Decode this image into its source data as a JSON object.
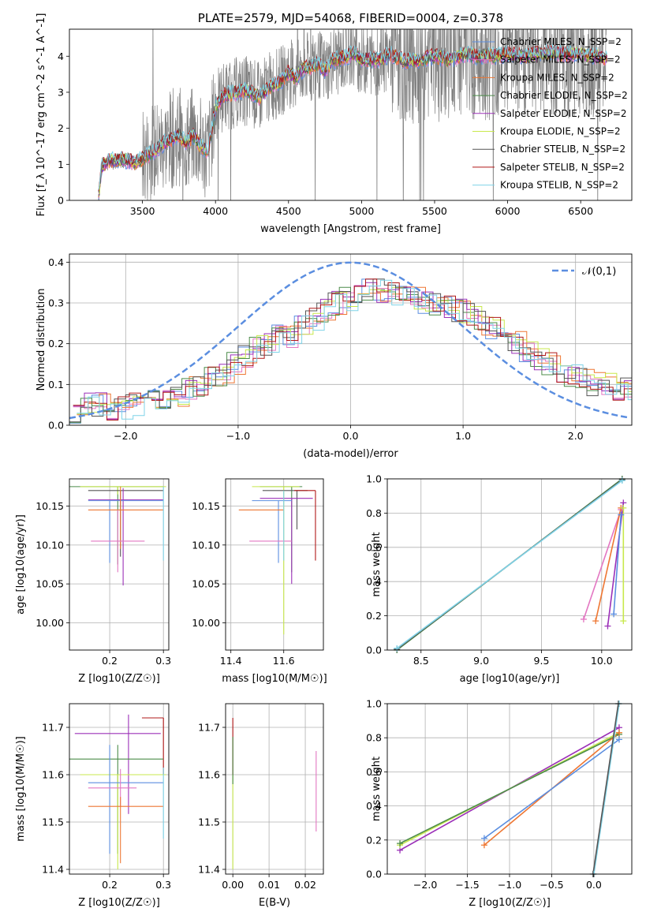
{
  "chart_data": [
    {
      "type": "line",
      "title": "PLATE=2579, MJD=54068, FIBERID=0004, z=0.378",
      "xlabel": "wavelength [Angstrom, rest frame]",
      "ylabel": "Flux [f_λ 10^-17 erg cm^-2 s^-1 A^-1]",
      "xlim": [
        3000,
        6850
      ],
      "ylim": [
        0,
        4.75
      ],
      "xticks": [
        3500,
        4000,
        4500,
        5000,
        5500,
        6000,
        6500
      ],
      "yticks": [
        0,
        1,
        2,
        3,
        4
      ],
      "grid": false,
      "legend_position": "top-right",
      "data_color": "#808080",
      "series": [
        {
          "name": "Chabrier MILES, N_SSP=2",
          "color": "#5b8ee0"
        },
        {
          "name": "Salpeter MILES, N_SSP=2",
          "color": "#e377c2"
        },
        {
          "name": "Kroupa MILES, N_SSP=2",
          "color": "#ee7733"
        },
        {
          "name": "Chabrier ELODIE, N_SSP=2",
          "color": "#4c8c4a"
        },
        {
          "name": "Salpeter ELODIE, N_SSP=2",
          "color": "#9b30b8"
        },
        {
          "name": "Kroupa ELODIE, N_SSP=2",
          "color": "#c8e84c"
        },
        {
          "name": "Chabrier STELIB, N_SSP=2",
          "color": "#555555"
        },
        {
          "name": "Salpeter STELIB, N_SSP=2",
          "color": "#b01818"
        },
        {
          "name": "Kroupa STELIB, N_SSP=2",
          "color": "#7fd3e8"
        }
      ],
      "model_continuum": {
        "x": [
          3200,
          3220,
          3250,
          3300,
          3350,
          3400,
          3450,
          3500,
          3550,
          3600,
          3650,
          3700,
          3750,
          3800,
          3850,
          3900,
          3950,
          4000,
          4050,
          4100,
          4150,
          4200,
          4250,
          4300,
          4350,
          4400,
          4450,
          4500,
          4550,
          4600,
          4650,
          4700,
          4750,
          4800,
          4850,
          4900,
          4950,
          5000,
          5100,
          5200,
          5300,
          5400,
          5500,
          5600,
          5700,
          5800,
          5900,
          6000,
          6100,
          6200,
          6300,
          6400,
          6500,
          6600,
          6680
        ],
        "y": [
          0.05,
          0.95,
          1.05,
          1.1,
          1.15,
          1.1,
          1.05,
          1.15,
          1.3,
          1.4,
          1.6,
          1.7,
          1.8,
          1.6,
          1.8,
          1.5,
          1.35,
          2.6,
          2.9,
          2.95,
          3.0,
          3.05,
          3.0,
          2.85,
          3.1,
          3.2,
          3.3,
          3.55,
          3.4,
          3.65,
          3.7,
          3.8,
          3.6,
          3.9,
          3.9,
          4.0,
          4.1,
          3.9,
          3.9,
          4.05,
          3.85,
          3.9,
          4.0,
          3.9,
          4.05,
          4.0,
          4.0,
          4.05,
          4.0,
          4.05,
          4.1,
          4.05,
          4.05,
          4.0,
          3.95
        ]
      }
    },
    {
      "type": "step",
      "xlabel": "(data-model)/error",
      "ylabel": "Normed distribution",
      "xlim": [
        -2.5,
        2.5
      ],
      "ylim": [
        0,
        0.42
      ],
      "xticks": [
        -2,
        -1,
        0,
        1,
        2
      ],
      "yticks": [
        0.0,
        0.1,
        0.2,
        0.3,
        0.4
      ],
      "grid": true,
      "legend_position": "top-right",
      "gaussian": {
        "name": "𝒩(0,1)",
        "mean": 0,
        "sigma": 1,
        "color": "#5b8ee0"
      },
      "hist_bin_width": 0.1,
      "hist_base": [
        0.02,
        0.05,
        0.05,
        0.04,
        0.04,
        0.05,
        0.05,
        0.06,
        0.07,
        0.07,
        0.09,
        0.1,
        0.12,
        0.12,
        0.15,
        0.17,
        0.19,
        0.2,
        0.22,
        0.22,
        0.25,
        0.26,
        0.28,
        0.3,
        0.31,
        0.32,
        0.33,
        0.33,
        0.32,
        0.32,
        0.31,
        0.3,
        0.3,
        0.29,
        0.28,
        0.27,
        0.25,
        0.24,
        0.22,
        0.2,
        0.18,
        0.16,
        0.15,
        0.13,
        0.12,
        0.11,
        0.1,
        0.1,
        0.09,
        0.09
      ]
    },
    {
      "type": "errorbar",
      "xlabel": "Z [log10(Z/Z☉)]",
      "ylabel": "age [log10(age/yr)]",
      "xlim": [
        0.125,
        0.31
      ],
      "ylim": [
        9.965,
        10.185
      ],
      "xticks": [
        0.2,
        0.3
      ],
      "yticks": [
        10.0,
        10.05,
        10.1,
        10.15
      ],
      "grid": true,
      "points": [
        {
          "x": 0.215,
          "y": 10.175,
          "xerr": [
            0.09,
            0.085
          ],
          "yerr": [
            0.1,
            0.0
          ],
          "color": "#4c8c4a"
        },
        {
          "x": 0.215,
          "y": 10.175,
          "xerr": [
            0.07,
            0.09
          ],
          "yerr": [
            0.01,
            0.0
          ],
          "color": "#c8e84c"
        },
        {
          "x": 0.22,
          "y": 10.17,
          "xerr": [
            0.06,
            0.08
          ],
          "yerr": [
            0.085,
            0.0
          ],
          "color": "#555555"
        },
        {
          "x": 0.225,
          "y": 10.158,
          "xerr": [
            0.065,
            0.075
          ],
          "yerr": [
            0.11,
            0.015
          ],
          "color": "#9b30b8"
        },
        {
          "x": 0.2,
          "y": 10.157,
          "xerr": [
            0.04,
            0.1
          ],
          "yerr": [
            0.08,
            0.0
          ],
          "color": "#5b8ee0"
        },
        {
          "x": 0.22,
          "y": 10.145,
          "xerr": [
            0.06,
            0.08
          ],
          "yerr": [
            0.05,
            0.03
          ],
          "color": "#ee7733"
        },
        {
          "x": 0.215,
          "y": 10.105,
          "xerr": [
            0.05,
            0.05
          ],
          "yerr": [
            0.04,
            0.04
          ],
          "color": "#e377c2"
        },
        {
          "x": 0.3,
          "y": 10.17,
          "xerr": [
            0.0,
            0.0
          ],
          "yerr": [
            0.09,
            0.005
          ],
          "color": "#7fd3e8"
        }
      ]
    },
    {
      "type": "errorbar",
      "xlabel": "mass [log10(M/M☉)]",
      "ylabel": "",
      "xlim": [
        11.38,
        11.75
      ],
      "ylim": [
        9.965,
        10.185
      ],
      "xticks": [
        11.4,
        11.6
      ],
      "yticks": [
        10.0,
        10.05,
        10.1,
        10.15
      ],
      "grid": true,
      "points": [
        {
          "x": 11.63,
          "y": 10.175,
          "xerr": [
            0.12,
            0.04
          ],
          "yerr": [
            0.11,
            0.0
          ],
          "color": "#4c8c4a"
        },
        {
          "x": 11.6,
          "y": 10.175,
          "xerr": [
            0.12,
            0.06
          ],
          "yerr": [
            0.19,
            0.0
          ],
          "color": "#c8e84c"
        },
        {
          "x": 11.65,
          "y": 10.17,
          "xerr": [
            0.13,
            0.04
          ],
          "yerr": [
            0.05,
            0.0
          ],
          "color": "#555555"
        },
        {
          "x": 11.72,
          "y": 10.17,
          "xerr": [
            0.08,
            0.0
          ],
          "yerr": [
            0.09,
            0.0
          ],
          "color": "#b01818"
        },
        {
          "x": 11.63,
          "y": 10.16,
          "xerr": [
            0.12,
            0.08
          ],
          "yerr": [
            0.11,
            0.0
          ],
          "color": "#9b30b8"
        },
        {
          "x": 11.58,
          "y": 10.157,
          "xerr": [
            0.1,
            0.05
          ],
          "yerr": [
            0.08,
            0.0
          ],
          "color": "#5b8ee0"
        },
        {
          "x": 11.53,
          "y": 10.145,
          "xerr": [
            0.1,
            0.07
          ],
          "yerr": [
            0.0,
            0.0
          ],
          "color": "#ee7733"
        },
        {
          "x": 11.57,
          "y": 10.105,
          "xerr": [
            0.1,
            0.06
          ],
          "yerr": [
            0.0,
            0.0
          ],
          "color": "#e377c2"
        },
        {
          "x": 11.6,
          "y": 10.15,
          "xerr": [
            0.0,
            0.0
          ],
          "yerr": [
            0.07,
            0.02
          ],
          "color": "#7fd3e8"
        }
      ]
    },
    {
      "type": "line",
      "xlabel": "age [log10(age/yr)]",
      "ylabel": "mass weight",
      "xlim": [
        8.22,
        10.25
      ],
      "ylim": [
        0,
        1
      ],
      "xticks": [
        8.5,
        9.0,
        9.5,
        10.0
      ],
      "yticks": [
        0.0,
        0.2,
        0.4,
        0.6,
        0.8,
        1.0
      ],
      "grid": true,
      "series": [
        {
          "color": "#4c8c4a",
          "x": [
            8.3,
            10.17
          ],
          "y": [
            0.0,
            1.0
          ]
        },
        {
          "color": "#555555",
          "x": [
            8.3,
            10.17
          ],
          "y": [
            0.005,
            0.995
          ]
        },
        {
          "color": "#7fd3e8",
          "x": [
            8.3,
            10.17
          ],
          "y": [
            0.01,
            0.99
          ]
        },
        {
          "color": "#e377c2",
          "x": [
            9.85,
            10.16
          ],
          "y": [
            0.18,
            0.82
          ]
        },
        {
          "color": "#ee7733",
          "x": [
            9.95,
            10.16
          ],
          "y": [
            0.17,
            0.83
          ]
        },
        {
          "color": "#9b30b8",
          "x": [
            10.05,
            10.18
          ],
          "y": [
            0.14,
            0.86
          ]
        },
        {
          "color": "#5b8ee0",
          "x": [
            10.1,
            10.16
          ],
          "y": [
            0.21,
            0.79
          ]
        },
        {
          "color": "#c8e84c",
          "x": [
            10.18,
            10.18
          ],
          "y": [
            0.17,
            0.83
          ]
        }
      ]
    },
    {
      "type": "errorbar",
      "xlabel": "Z [log10(Z/Z☉)]",
      "ylabel": "mass [log10(M/M☉)]",
      "xlim": [
        0.125,
        0.31
      ],
      "ylim": [
        11.39,
        11.75
      ],
      "xticks": [
        0.2,
        0.3
      ],
      "yticks": [
        11.4,
        11.5,
        11.6,
        11.7
      ],
      "grid": true,
      "points": [
        {
          "x": 0.3,
          "y": 11.72,
          "xerr": [
            0.04,
            0.0
          ],
          "yerr": [
            0.12,
            0.0
          ],
          "color": "#b01818"
        },
        {
          "x": 0.235,
          "y": 11.687,
          "xerr": [
            0.1,
            0.06
          ],
          "yerr": [
            0.17,
            0.04
          ],
          "color": "#9b30b8"
        },
        {
          "x": 0.215,
          "y": 11.633,
          "xerr": [
            0.09,
            0.085
          ],
          "yerr": [
            0.2,
            0.03
          ],
          "color": "#4c8c4a"
        },
        {
          "x": 0.215,
          "y": 11.6,
          "xerr": [
            0.07,
            0.09
          ],
          "yerr": [
            0.2,
            0.0
          ],
          "color": "#c8e84c"
        },
        {
          "x": 0.2,
          "y": 11.583,
          "xerr": [
            0.04,
            0.1
          ],
          "yerr": [
            0.15,
            0.08
          ],
          "color": "#5b8ee0"
        },
        {
          "x": 0.22,
          "y": 11.572,
          "xerr": [
            0.06,
            0.03
          ],
          "yerr": [
            0.04,
            0.04
          ],
          "color": "#e377c2"
        },
        {
          "x": 0.22,
          "y": 11.533,
          "xerr": [
            0.06,
            0.08
          ],
          "yerr": [
            0.12,
            0.02
          ],
          "color": "#ee7733"
        },
        {
          "x": 0.3,
          "y": 11.615,
          "xerr": [
            0.0,
            0.0
          ],
          "yerr": [
            0.15,
            0.0
          ],
          "color": "#7fd3e8"
        }
      ]
    },
    {
      "type": "errorbar",
      "xlabel": "E(B-V)",
      "ylabel": "",
      "xlim": [
        -0.002,
        0.025
      ],
      "ylim": [
        11.39,
        11.75
      ],
      "xticks": [
        0.0,
        0.01,
        0.02
      ],
      "yticks": [
        11.4,
        11.5,
        11.6,
        11.7
      ],
      "grid": true,
      "points": [
        {
          "x": 0.0,
          "y": 11.72,
          "xerr": [
            0.0,
            0.0
          ],
          "yerr": [
            0.12,
            0.0
          ],
          "color": "#b01818"
        },
        {
          "x": 0.0,
          "y": 11.6,
          "xerr": [
            0.0,
            0.0
          ],
          "yerr": [
            0.2,
            0.0
          ],
          "color": "#c8e84c"
        },
        {
          "x": 0.0,
          "y": 11.63,
          "xerr": [
            0.0,
            0.0
          ],
          "yerr": [
            0.05,
            0.05
          ],
          "color": "#4c8c4a"
        },
        {
          "x": 0.023,
          "y": 11.57,
          "xerr": [
            0.0,
            0.0
          ],
          "yerr": [
            0.09,
            0.08
          ],
          "color": "#e377c2"
        }
      ]
    },
    {
      "type": "line",
      "xlabel": "Z [log10(Z/Z☉)]",
      "ylabel": "mass weight",
      "xlim": [
        -2.45,
        0.45
      ],
      "ylim": [
        0,
        1
      ],
      "xticks": [
        -2.0,
        -1.5,
        -1.0,
        -0.5,
        0.0
      ],
      "yticks": [
        0.0,
        0.2,
        0.4,
        0.6,
        0.8,
        1.0
      ],
      "grid": true,
      "series": [
        {
          "color": "#9b30b8",
          "x": [
            -2.3,
            0.3
          ],
          "y": [
            0.14,
            0.86
          ]
        },
        {
          "color": "#c8e84c",
          "x": [
            -2.3,
            0.3
          ],
          "y": [
            0.17,
            0.83
          ]
        },
        {
          "color": "#4c8c4a",
          "x": [
            -2.3,
            0.3
          ],
          "y": [
            0.18,
            0.82
          ]
        },
        {
          "color": "#ee7733",
          "x": [
            -1.3,
            0.3
          ],
          "y": [
            0.17,
            0.83
          ]
        },
        {
          "color": "#5b8ee0",
          "x": [
            -1.3,
            0.3
          ],
          "y": [
            0.21,
            0.79
          ]
        },
        {
          "color": "#7fd3e8",
          "x": [
            0.0,
            0.3
          ],
          "y": [
            0.0,
            1.0
          ]
        },
        {
          "color": "#555555",
          "x": [
            -0.01,
            0.29
          ],
          "y": [
            0.0,
            1.0
          ]
        }
      ]
    }
  ]
}
